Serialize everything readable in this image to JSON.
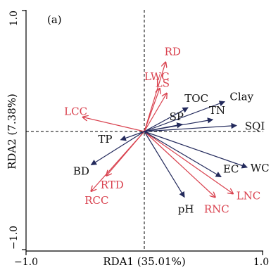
{
  "chart_data": {
    "type": "scatter",
    "panel_label": "(a)",
    "xlabel": "RDA1 (35.01%)",
    "ylabel": "RDA2 (7.38%)",
    "xlim": [
      -1.0,
      1.0
    ],
    "ylim": [
      -1.0,
      1.0
    ],
    "x_ticks": [
      "−1.0",
      "1.0"
    ],
    "y_ticks": [
      "1.0",
      "−1.0"
    ],
    "reference_lines": "dashed at x=0 and y=0",
    "colors": {
      "response": "#d9414e",
      "explanatory": "#232a5c"
    },
    "series": [
      {
        "group": "response",
        "vectors": [
          {
            "name": "RD",
            "x": 0.18,
            "y": 0.58
          },
          {
            "name": "LWC",
            "x": 0.13,
            "y": 0.36
          },
          {
            "name": "LS",
            "x": 0.19,
            "y": 0.32
          },
          {
            "name": "LCC",
            "x": -0.52,
            "y": 0.12
          },
          {
            "name": "RTD",
            "x": -0.32,
            "y": -0.37
          },
          {
            "name": "RCC",
            "x": -0.45,
            "y": -0.5
          },
          {
            "name": "LNC",
            "x": 0.75,
            "y": -0.52
          },
          {
            "name": "RNC",
            "x": 0.6,
            "y": -0.55
          }
        ]
      },
      {
        "group": "explanatory",
        "vectors": [
          {
            "name": "TOC",
            "x": 0.37,
            "y": 0.2
          },
          {
            "name": "Clay",
            "x": 0.68,
            "y": 0.25
          },
          {
            "name": "SP",
            "x": 0.32,
            "y": 0.06
          },
          {
            "name": "TN",
            "x": 0.58,
            "y": 0.1
          },
          {
            "name": "SQI",
            "x": 0.78,
            "y": 0.05
          },
          {
            "name": "TP",
            "x": -0.2,
            "y": -0.07
          },
          {
            "name": "BD",
            "x": -0.45,
            "y": -0.28
          },
          {
            "name": "WC",
            "x": 0.87,
            "y": -0.3
          },
          {
            "name": "EC",
            "x": 0.65,
            "y": -0.38
          },
          {
            "name": "pH",
            "x": 0.34,
            "y": -0.55
          }
        ]
      }
    ]
  }
}
